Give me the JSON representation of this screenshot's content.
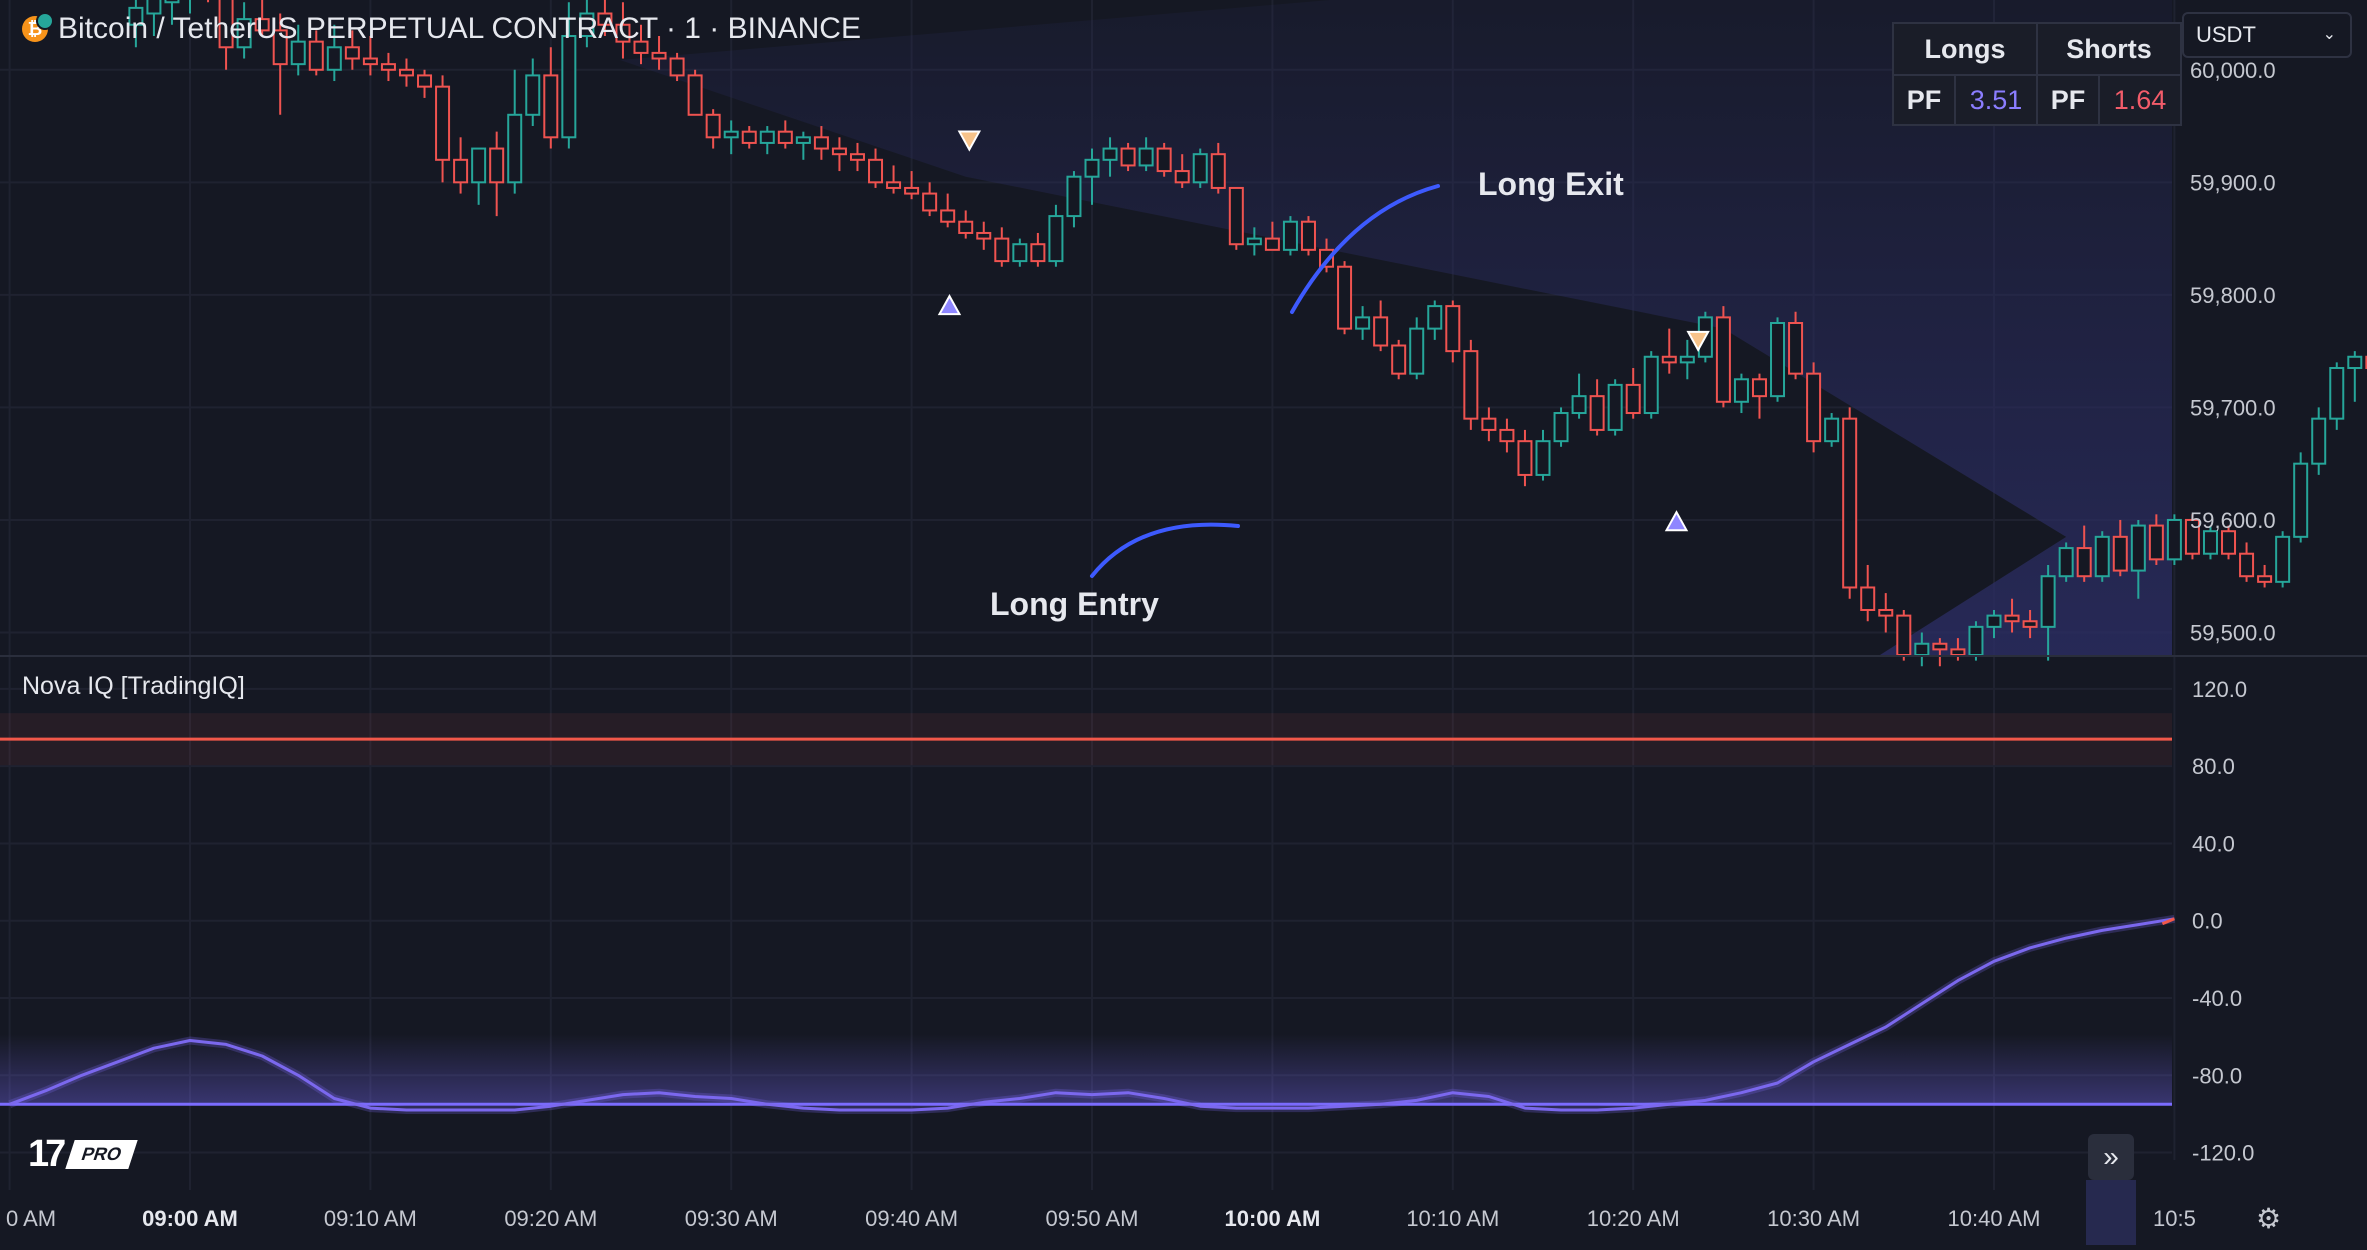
{
  "header": {
    "coin_symbol": "₿",
    "title": "Bitcoin / TetherUS PERPETUAL CONTRACT · 1 · BINANCE"
  },
  "currency": {
    "selected": "USDT",
    "caret": "⌄"
  },
  "pf_table": {
    "longs_label": "Longs",
    "shorts_label": "Shorts",
    "pf_label": "PF",
    "longs_pf": "3.51",
    "shorts_pf": "1.64"
  },
  "indicator": {
    "title": "Nova IQ [TradingIQ]"
  },
  "annotations": {
    "long_exit": "Long Exit",
    "long_entry": "Long Entry"
  },
  "logo": {
    "tv": "17",
    "pro": "PRO"
  },
  "icons": {
    "scroll_right": "double-chevron-right-icon",
    "settings": "gear-icon"
  },
  "colors": {
    "up": "#26a69a",
    "down": "#ef5350",
    "line": "#7b68ee",
    "upper_band": "#f2584a",
    "lower_band": "#7b6cff",
    "cloud": "#2b2d63"
  },
  "chart_data": [
    {
      "type": "candlestick",
      "y_ticks": [
        "60,000.0",
        "59,900.0",
        "59,800.0",
        "59,700.0",
        "59,600.0",
        "59,500.0"
      ],
      "ylim": [
        59480,
        60062
      ],
      "x_ticks": [
        "0 AM",
        "09:00 AM",
        "09:10 AM",
        "09:20 AM",
        "09:30 AM",
        "09:40 AM",
        "09:50 AM",
        "10:00 AM",
        "10:10 AM",
        "10:20 AM",
        "10:30 AM",
        "10:40 AM",
        "10:5"
      ],
      "x_tick_minutes": [
        -10,
        0,
        10,
        20,
        30,
        40,
        50,
        60,
        70,
        80,
        90,
        100,
        110
      ],
      "bold_ticks": [
        "09:00 AM",
        "10:00 AM"
      ],
      "candles": [
        [
          -3,
          60040,
          60072,
          60020,
          60055
        ],
        [
          -2,
          60050,
          60080,
          60030,
          60065
        ],
        [
          -1,
          60060,
          60085,
          60040,
          60075
        ],
        [
          0,
          60070,
          60090,
          60050,
          60080
        ],
        [
          1,
          60080,
          60100,
          60060,
          60070
        ],
        [
          2,
          60070,
          60080,
          60000,
          60020
        ],
        [
          3,
          60020,
          60060,
          60010,
          60045
        ],
        [
          4,
          60045,
          60080,
          60030,
          60035
        ],
        [
          5,
          60035,
          60050,
          59960,
          60005
        ],
        [
          6,
          60005,
          60040,
          59995,
          60025
        ],
        [
          7,
          60025,
          60035,
          59995,
          60000
        ],
        [
          8,
          60000,
          60040,
          59990,
          60020
        ],
        [
          9,
          60020,
          60035,
          60000,
          60010
        ],
        [
          10,
          60010,
          60030,
          59995,
          60005
        ],
        [
          11,
          60005,
          60015,
          59990,
          60000
        ],
        [
          12,
          60000,
          60010,
          59985,
          59995
        ],
        [
          13,
          59995,
          60000,
          59975,
          59985
        ],
        [
          14,
          59985,
          59995,
          59900,
          59920
        ],
        [
          15,
          59920,
          59940,
          59890,
          59900
        ],
        [
          16,
          59900,
          59930,
          59880,
          59930
        ],
        [
          17,
          59930,
          59945,
          59870,
          59900
        ],
        [
          18,
          59900,
          60000,
          59890,
          59960
        ],
        [
          19,
          59960,
          60010,
          59950,
          59995
        ],
        [
          20,
          59995,
          60020,
          59930,
          59940
        ],
        [
          21,
          59940,
          60060,
          59930,
          60030
        ],
        [
          22,
          60030,
          60070,
          60020,
          60050
        ],
        [
          23,
          60050,
          60070,
          60030,
          60040
        ],
        [
          24,
          60040,
          60060,
          60010,
          60025
        ],
        [
          25,
          60025,
          60040,
          60005,
          60015
        ],
        [
          26,
          60015,
          60030,
          60000,
          60010
        ],
        [
          27,
          60010,
          60015,
          59990,
          59995
        ],
        [
          28,
          59995,
          60000,
          59960,
          59960
        ],
        [
          29,
          59960,
          59965,
          59930,
          59940
        ],
        [
          30,
          59940,
          59955,
          59925,
          59945
        ],
        [
          31,
          59945,
          59950,
          59930,
          59935
        ],
        [
          32,
          59935,
          59950,
          59925,
          59945
        ],
        [
          33,
          59945,
          59955,
          59930,
          59935
        ],
        [
          34,
          59935,
          59945,
          59920,
          59940
        ],
        [
          35,
          59940,
          59950,
          59920,
          59930
        ],
        [
          36,
          59930,
          59940,
          59910,
          59925
        ],
        [
          37,
          59925,
          59935,
          59910,
          59920
        ],
        [
          38,
          59920,
          59930,
          59895,
          59900
        ],
        [
          39,
          59900,
          59915,
          59890,
          59895
        ],
        [
          40,
          59895,
          59910,
          59885,
          59890
        ],
        [
          41,
          59890,
          59900,
          59870,
          59875
        ],
        [
          42,
          59875,
          59890,
          59860,
          59865
        ],
        [
          43,
          59865,
          59875,
          59850,
          59855
        ],
        [
          44,
          59855,
          59865,
          59840,
          59850
        ],
        [
          45,
          59850,
          59860,
          59825,
          59830
        ],
        [
          46,
          59830,
          59850,
          59825,
          59845
        ],
        [
          47,
          59845,
          59855,
          59825,
          59830
        ],
        [
          48,
          59830,
          59880,
          59825,
          59870
        ],
        [
          49,
          59870,
          59910,
          59860,
          59905
        ],
        [
          50,
          59905,
          59930,
          59880,
          59920
        ],
        [
          51,
          59920,
          59940,
          59905,
          59930
        ],
        [
          52,
          59930,
          59935,
          59910,
          59915
        ],
        [
          53,
          59915,
          59940,
          59910,
          59930
        ],
        [
          54,
          59930,
          59935,
          59905,
          59910
        ],
        [
          55,
          59910,
          59925,
          59895,
          59900
        ],
        [
          56,
          59900,
          59930,
          59895,
          59925
        ],
        [
          57,
          59925,
          59935,
          59890,
          59895
        ],
        [
          58,
          59895,
          59895,
          59840,
          59845
        ],
        [
          59,
          59845,
          59860,
          59835,
          59850
        ],
        [
          60,
          59850,
          59865,
          59840,
          59840
        ],
        [
          61,
          59840,
          59870,
          59835,
          59865
        ],
        [
          62,
          59865,
          59870,
          59835,
          59840
        ],
        [
          63,
          59840,
          59850,
          59820,
          59825
        ],
        [
          64,
          59825,
          59830,
          59765,
          59770
        ],
        [
          65,
          59770,
          59790,
          59760,
          59780
        ],
        [
          66,
          59780,
          59795,
          59750,
          59755
        ],
        [
          67,
          59755,
          59760,
          59725,
          59730
        ],
        [
          68,
          59730,
          59780,
          59725,
          59770
        ],
        [
          69,
          59770,
          59795,
          59760,
          59790
        ],
        [
          70,
          59790,
          59795,
          59740,
          59750
        ],
        [
          71,
          59750,
          59760,
          59680,
          59690
        ],
        [
          72,
          59690,
          59700,
          59670,
          59680
        ],
        [
          73,
          59680,
          59690,
          59660,
          59670
        ],
        [
          74,
          59670,
          59680,
          59630,
          59640
        ],
        [
          75,
          59640,
          59680,
          59635,
          59670
        ],
        [
          76,
          59670,
          59700,
          59665,
          59695
        ],
        [
          77,
          59695,
          59730,
          59690,
          59710
        ],
        [
          78,
          59710,
          59725,
          59675,
          59680
        ],
        [
          79,
          59680,
          59725,
          59675,
          59720
        ],
        [
          80,
          59720,
          59735,
          59690,
          59695
        ],
        [
          81,
          59695,
          59750,
          59690,
          59745
        ],
        [
          82,
          59745,
          59770,
          59730,
          59740
        ],
        [
          83,
          59740,
          59760,
          59725,
          59745
        ],
        [
          84,
          59745,
          59785,
          59740,
          59780
        ],
        [
          85,
          59780,
          59790,
          59700,
          59705
        ],
        [
          86,
          59705,
          59730,
          59695,
          59725
        ],
        [
          87,
          59725,
          59730,
          59690,
          59710
        ],
        [
          88,
          59710,
          59780,
          59705,
          59775
        ],
        [
          89,
          59775,
          59785,
          59725,
          59730
        ],
        [
          90,
          59730,
          59740,
          59660,
          59670
        ],
        [
          91,
          59670,
          59695,
          59665,
          59690
        ],
        [
          92,
          59690,
          59700,
          59530,
          59540
        ],
        [
          93,
          59540,
          59560,
          59510,
          59520
        ],
        [
          94,
          59520,
          59535,
          59500,
          59515
        ],
        [
          95,
          59515,
          59520,
          59475,
          59480
        ],
        [
          96,
          59480,
          59500,
          59470,
          59490
        ],
        [
          97,
          59490,
          59495,
          59470,
          59485
        ],
        [
          98,
          59485,
          59495,
          59475,
          59480
        ],
        [
          99,
          59480,
          59510,
          59475,
          59505
        ],
        [
          100,
          59505,
          59520,
          59495,
          59515
        ],
        [
          101,
          59515,
          59530,
          59500,
          59510
        ],
        [
          102,
          59510,
          59520,
          59495,
          59505
        ],
        [
          103,
          59505,
          59560,
          59475,
          59550
        ],
        [
          104,
          59550,
          59580,
          59545,
          59575
        ],
        [
          105,
          59575,
          59595,
          59545,
          59550
        ],
        [
          106,
          59550,
          59590,
          59545,
          59585
        ],
        [
          107,
          59585,
          59600,
          59550,
          59555
        ],
        [
          108,
          59555,
          59600,
          59530,
          59595
        ],
        [
          109,
          59595,
          59605,
          59560,
          59565
        ],
        [
          110,
          59565,
          59605,
          59560,
          59600
        ],
        [
          111,
          59600,
          59605,
          59565,
          59570
        ],
        [
          112,
          59570,
          59595,
          59565,
          59590
        ],
        [
          113,
          59590,
          59595,
          59565,
          59570
        ],
        [
          114,
          59570,
          59580,
          59545,
          59550
        ],
        [
          115,
          59550,
          59560,
          59540,
          59545
        ],
        [
          116,
          59545,
          59590,
          59540,
          59585
        ],
        [
          117,
          59585,
          59660,
          59580,
          59650
        ],
        [
          118,
          59650,
          59700,
          59640,
          59690
        ],
        [
          119,
          59690,
          59740,
          59680,
          59735
        ],
        [
          120,
          59735,
          59750,
          59705,
          59745
        ],
        [
          121,
          59745,
          59755,
          59725,
          59735
        ],
        [
          122,
          59735,
          59750,
          59720,
          59745
        ],
        [
          123,
          59745,
          59750,
          59720,
          59725
        ],
        [
          124,
          59725,
          59740,
          59715,
          59735
        ],
        [
          125,
          59735,
          59745,
          59720,
          59725
        ],
        [
          126,
          59725,
          59745,
          59720,
          59740
        ],
        [
          127,
          59740,
          59790,
          59735,
          59785
        ],
        [
          128,
          59785,
          59805,
          59775,
          59800
        ],
        [
          129,
          59800,
          59880,
          59795,
          59875
        ],
        [
          130,
          59875,
          59885,
          59850,
          59860
        ],
        [
          131,
          59860,
          59870,
          59805,
          59810
        ],
        [
          132,
          59810,
          59825,
          59795,
          59800
        ],
        [
          133,
          59800,
          59830,
          59795,
          59825
        ],
        [
          134,
          59825,
          59870,
          59820,
          59865
        ],
        [
          135,
          59865,
          59870,
          59810,
          59815
        ],
        [
          136,
          59815,
          59825,
          59795,
          59800
        ],
        [
          137,
          59800,
          59810,
          59790,
          59805
        ],
        [
          138,
          59805,
          59815,
          59795,
          59810
        ],
        [
          139,
          59810,
          59815,
          59790,
          59795
        ],
        [
          140,
          59795,
          59805,
          59775,
          59790
        ],
        [
          141,
          59790,
          59800,
          59780,
          59795
        ],
        [
          142,
          59795,
          59800,
          59780,
          59790
        ],
        [
          143,
          59790,
          59860,
          59785,
          59800
        ]
      ],
      "markers": [
        {
          "type": "sell",
          "t": 43.2,
          "price": 59938
        },
        {
          "type": "buy",
          "t": 42.1,
          "price": 59790
        },
        {
          "type": "sell",
          "t": 83.6,
          "price": 59760
        },
        {
          "type": "buy",
          "t": 82.4,
          "price": 59598
        }
      ]
    },
    {
      "type": "line",
      "name": "Nova IQ [TradingIQ]",
      "y_ticks": [
        "120.0",
        "80.0",
        "40.0",
        "0.0",
        "-40.0",
        "-80.0",
        "-120.0"
      ],
      "ylim": [
        -128,
        136
      ],
      "upper_band": 94,
      "lower_band": -95,
      "x": [
        -10,
        -8,
        -6,
        -4,
        -2,
        0,
        2,
        4,
        6,
        8,
        10,
        12,
        14,
        16,
        18,
        20,
        22,
        24,
        26,
        28,
        30,
        32,
        34,
        36,
        38,
        40,
        42,
        44,
        46,
        48,
        50,
        52,
        54,
        56,
        58,
        60,
        62,
        64,
        66,
        68,
        70,
        72,
        74,
        76,
        78,
        80,
        82,
        84,
        86,
        88,
        90,
        92,
        94,
        96,
        98,
        100,
        102,
        104,
        106,
        108,
        110
      ],
      "values": [
        -95,
        -88,
        -80,
        -73,
        -66,
        -62,
        -64,
        -70,
        -80,
        -92,
        -97,
        -98,
        -98,
        -98,
        -98,
        -96,
        -93,
        -90,
        -89,
        -91,
        -92,
        -95,
        -97,
        -98,
        -98,
        -98,
        -97,
        -94,
        -92,
        -89,
        -90,
        -89,
        -92,
        -96,
        -97,
        -97,
        -97,
        -96,
        -95,
        -93,
        -89,
        -91,
        -97,
        -98,
        -98,
        -97,
        -95,
        -93,
        -89,
        -84,
        -73,
        -64,
        -55,
        -43,
        -31,
        -21,
        -14,
        -9,
        -5,
        -2,
        1
      ]
    }
  ]
}
